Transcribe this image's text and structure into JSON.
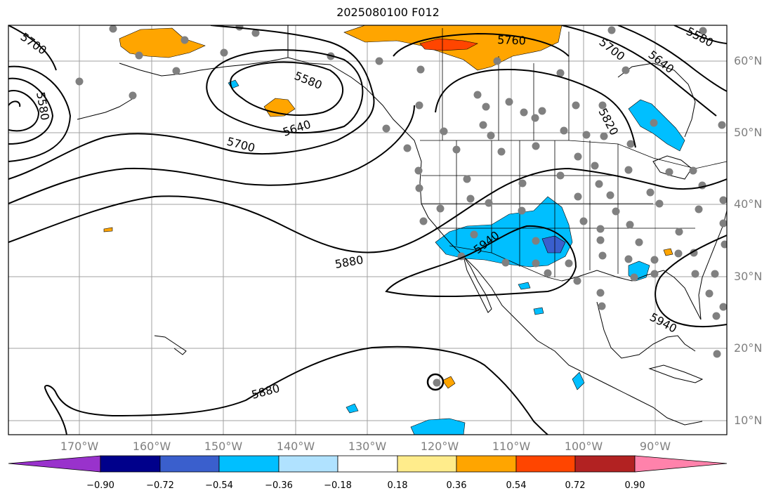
{
  "map": {
    "title": "2025080100 F012",
    "lat_labels": [
      "60°N",
      "50°N",
      "40°N",
      "30°N",
      "20°N",
      "10°N"
    ],
    "lon_labels": [
      "170°W",
      "160°W",
      "150°W",
      "140°W",
      "130°W",
      "120°W",
      "110°W",
      "100°W",
      "90°W"
    ],
    "contour_labels": [
      "5700",
      "5580",
      "5640",
      "5700",
      "5760",
      "5700",
      "5640",
      "5580",
      "5820",
      "5880",
      "5940",
      "5880",
      "5940",
      "5580"
    ],
    "colorbar": {
      "colors": [
        "#9932cc",
        "#00008b",
        "#3a5fcd",
        "#00bfff",
        "#b0e2ff",
        "#ffffff",
        "#ffec8b",
        "#ffa500",
        "#ff4500",
        "#b22222",
        "#ff82ab"
      ],
      "tick_labels": [
        "−0.90",
        "−0.72",
        "−0.54",
        "−0.36",
        "−0.18",
        "0.18",
        "0.36",
        "0.54",
        "0.72",
        "0.90"
      ]
    },
    "colors": {
      "contour": "#000000",
      "grid": "#a0a0a0",
      "station": "#808080",
      "coast": "#000000"
    }
  }
}
